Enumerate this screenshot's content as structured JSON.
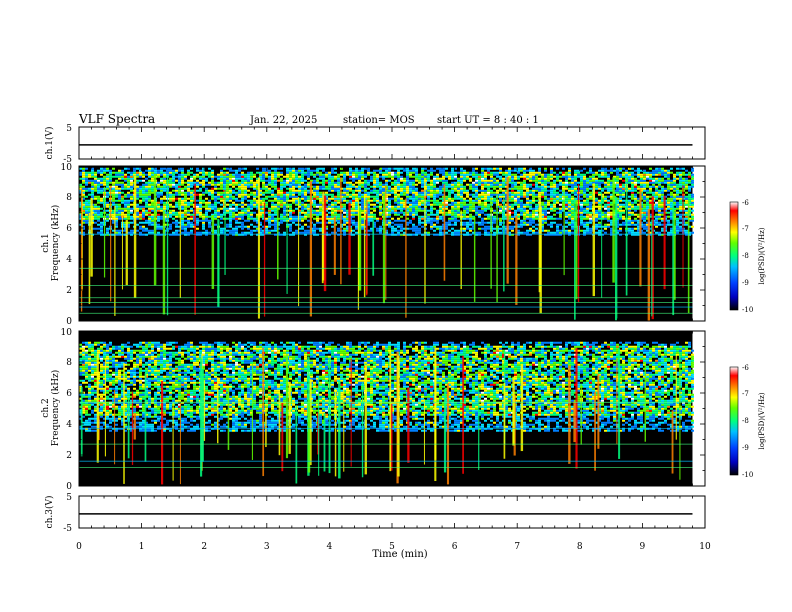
{
  "header": {
    "title": "VLF Spectra",
    "date": "Jan. 22, 2025",
    "station": "station= MOS",
    "start": "start UT = 8 : 40 : 1"
  },
  "colors": {
    "background": "#000000",
    "colormap": [
      "#000000",
      "#0000b0",
      "#0000ff",
      "#0080ff",
      "#00e0ff",
      "#00ff80",
      "#60ff00",
      "#ffff00",
      "#ff8000",
      "#ff0000",
      "#ffffff"
    ],
    "signal_line": "#000000"
  },
  "chart_data": [
    {
      "type": "line",
      "name": "channel-1-waveform-panel",
      "ylabel": "ch.1(V)",
      "ylim": [
        -5,
        5
      ],
      "yticks": [
        "5",
        "-5"
      ],
      "xlim": [
        0,
        10
      ],
      "series": [
        {
          "x": [
            0,
            9.8
          ],
          "values": [
            -0.6,
            -0.6
          ]
        }
      ]
    },
    {
      "type": "heatmap",
      "name": "channel-1-spectrogram",
      "ylabel": [
        "ch.1",
        "Frequency (kHz)"
      ],
      "ylim": [
        0,
        10
      ],
      "yticks": [
        "0",
        "2",
        "4",
        "6",
        "8",
        "10"
      ],
      "xlim": [
        0,
        10
      ],
      "data_end": 9.8,
      "emission_band_khz": [
        6.5,
        9.5
      ],
      "hum_lines_khz": [
        0.5,
        0.9,
        1.2,
        1.5,
        2.3,
        3.4,
        5.6
      ],
      "colorbar": {
        "label": "log(PSD)(V²/Hz)",
        "range": [
          -10,
          -6
        ],
        "ticks": [
          "-6",
          "-7",
          "-8",
          "-9",
          "-10"
        ]
      }
    },
    {
      "type": "heatmap",
      "name": "channel-2-spectrogram",
      "ylabel": [
        "ch.2",
        "Frequency (kHz)"
      ],
      "ylim": [
        0,
        10
      ],
      "yticks": [
        "0",
        "2",
        "4",
        "6",
        "8",
        "10"
      ],
      "xlim": [
        0,
        10
      ],
      "data_end": 9.8,
      "emission_band_khz": [
        4.5,
        9.0
      ],
      "hum_lines_khz": [
        1.2,
        1.6,
        2.7,
        3.7,
        5.4
      ],
      "colorbar": {
        "label": "log(PSD)(V²/Hz)",
        "range": [
          -10,
          -6
        ],
        "ticks": [
          "-6",
          "-7",
          "-8",
          "-9",
          "-10"
        ]
      }
    },
    {
      "type": "line",
      "name": "channel-3-waveform-panel",
      "ylabel": "ch.3(V)",
      "ylim": [
        -5,
        5
      ],
      "yticks": [
        "5",
        "-5"
      ],
      "xlim": [
        0,
        10
      ],
      "xlabel": "Time (min)",
      "xticks": [
        "0",
        "1",
        "2",
        "3",
        "4",
        "5",
        "6",
        "7",
        "8",
        "9",
        "10"
      ],
      "series": [
        {
          "x": [
            0,
            9.8
          ],
          "values": [
            -0.6,
            -0.6
          ]
        }
      ]
    }
  ]
}
